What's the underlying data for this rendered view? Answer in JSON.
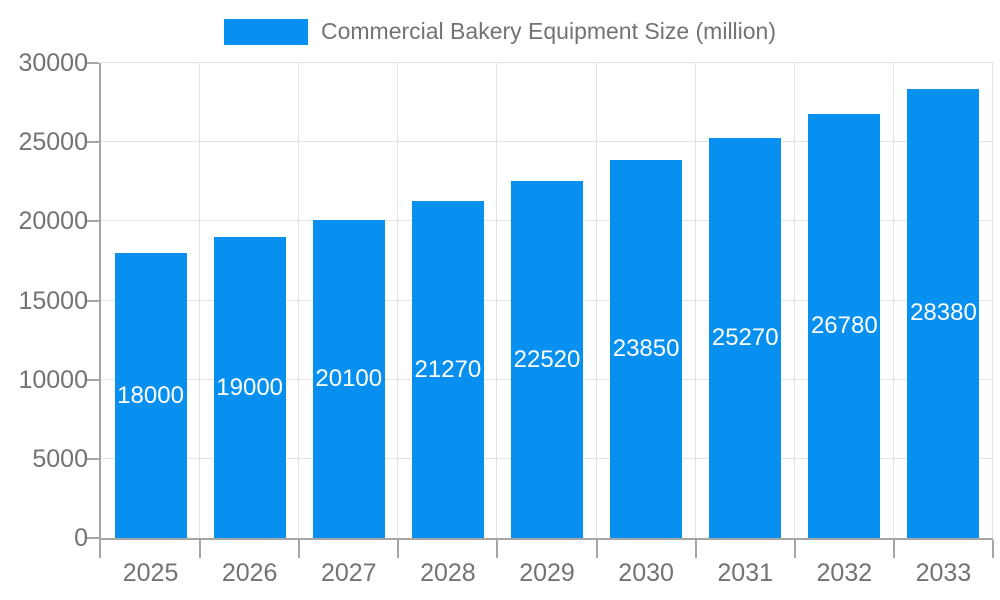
{
  "legend": {
    "items": [
      {
        "label": "Commercial Bakery Equipment Size (million)",
        "swatch_color": "#0890F0"
      }
    ]
  },
  "chart_data": {
    "type": "bar",
    "title": "Commercial Bakery Equipment Size (million)",
    "categories": [
      "2025",
      "2026",
      "2027",
      "2028",
      "2029",
      "2030",
      "2031",
      "2032",
      "2033"
    ],
    "values": [
      18000,
      19000,
      20100,
      21270,
      22520,
      23850,
      25270,
      26780,
      28380
    ],
    "xlabel": "",
    "ylabel": "",
    "ylim": [
      0,
      30000
    ],
    "yticks": [
      0,
      5000,
      10000,
      15000,
      20000,
      25000,
      30000
    ],
    "grid": true,
    "legend_position": "top-center",
    "bar_labels_visible": true,
    "colors": {
      "bar": "#0890F0",
      "bar_label_text": "#ffffff",
      "axis_line": "#a6a6a6",
      "gridline": "#e3e3e3",
      "tick_label_text": "#737373"
    }
  }
}
